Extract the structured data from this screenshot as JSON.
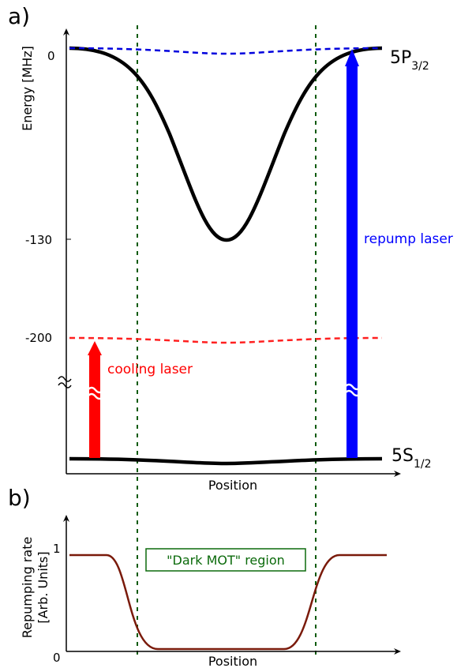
{
  "panel_a": {
    "label": "a)",
    "ylabel": "Energy [MHz]",
    "xlabel": "Position",
    "ticks": [
      "0",
      "-130",
      "-200"
    ],
    "level_upper": {
      "main": "5P",
      "sub": "3/2"
    },
    "level_lower": {
      "main": "5S",
      "sub": "1/2"
    },
    "lasers": [
      {
        "name": "cooling laser",
        "color": "#ff0000"
      },
      {
        "name": "repump laser",
        "color": "#0000ff"
      }
    ]
  },
  "panel_b": {
    "label": "b)",
    "ylabel_line1": "Repumping rate",
    "ylabel_line2": "[Arb. Units]",
    "xlabel": "Position",
    "ticks": [
      "1",
      "0"
    ],
    "region_label": "\"Dark MOT\" region",
    "curve_color": "#7a1a0a",
    "region_color": "#0b6a0b"
  }
}
